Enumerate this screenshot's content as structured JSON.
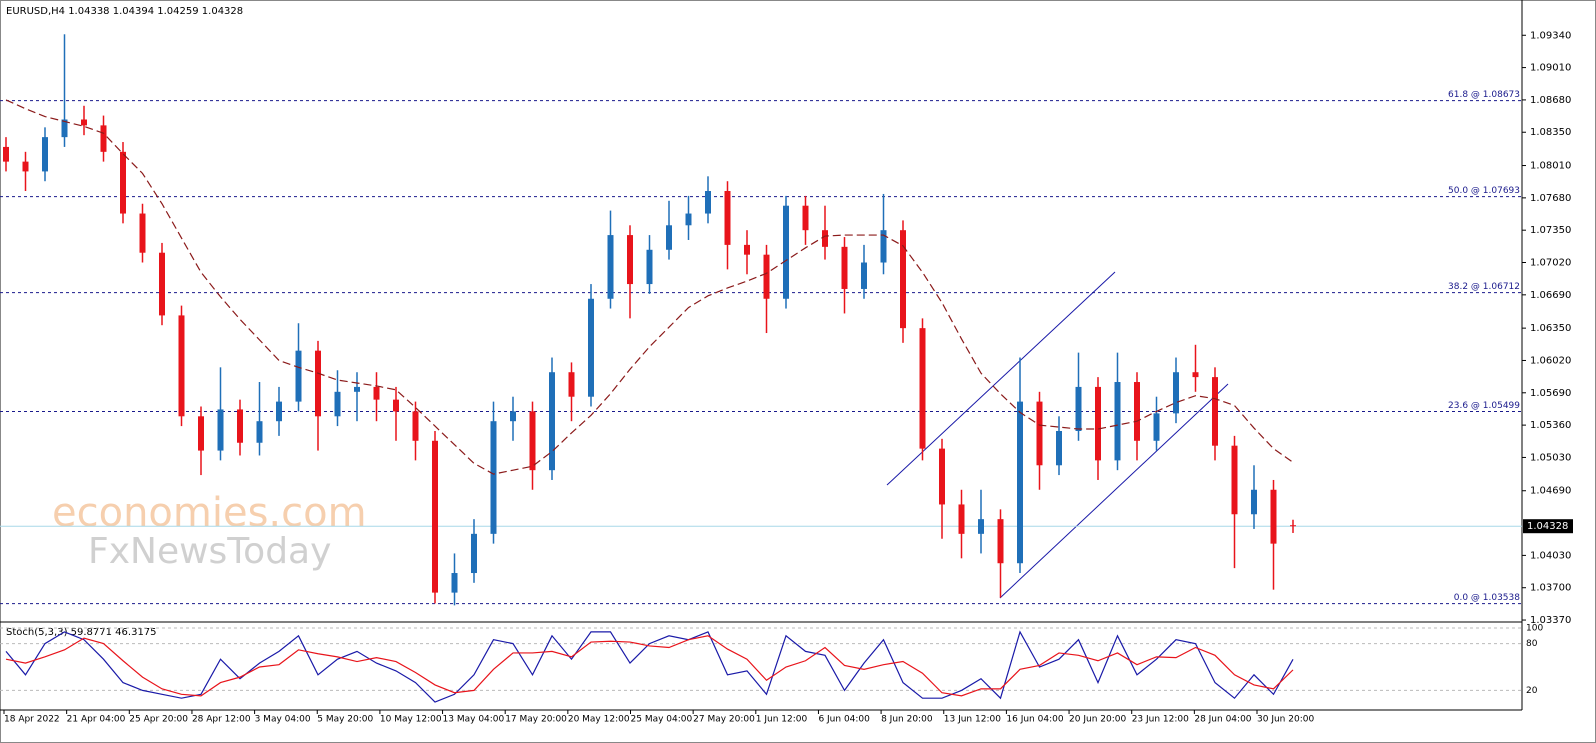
{
  "chart_data": {
    "type": "candlestick",
    "title": "EURUSD,H4  1.04338 1.04394 1.04259 1.04328",
    "watermark": [
      "economies.com",
      "FxNewsToday"
    ],
    "up_color": "#1f6fb8",
    "down_color": "#e8141b",
    "open": [
      1.082,
      1.0805,
      1.0795,
      1.083,
      1.0848,
      1.0842,
      1.0815,
      1.0752,
      1.0712,
      1.0648,
      1.0545,
      1.051,
      1.0552,
      1.0518,
      1.054,
      1.056,
      1.0612,
      1.0545,
      1.057,
      1.0575,
      1.0562,
      1.055,
      1.052,
      1.0365,
      1.0385,
      1.0425,
      1.054,
      1.055,
      1.049,
      1.059,
      1.0565,
      1.0665,
      1.073,
      1.068,
      1.0715,
      1.074,
      1.0752,
      1.0775,
      1.072,
      1.071,
      1.0665,
      1.076,
      1.0735,
      1.0718,
      1.0675,
      1.0702,
      1.0735,
      1.0635,
      1.0512,
      1.0455,
      1.0425,
      1.044,
      1.0395,
      1.056,
      1.0495,
      1.053,
      1.0575,
      1.05,
      1.058,
      1.052,
      1.0548,
      1.059,
      1.0585,
      1.0515,
      1.0445,
      1.047,
      1.04338
    ],
    "high": [
      1.083,
      1.0815,
      1.084,
      1.0935,
      1.0862,
      1.0852,
      1.0825,
      1.0762,
      1.0722,
      1.0658,
      1.0555,
      1.0595,
      1.0562,
      1.058,
      1.0575,
      1.064,
      1.0622,
      1.0592,
      1.059,
      1.059,
      1.0575,
      1.056,
      1.053,
      1.0405,
      1.044,
      1.056,
      1.0565,
      1.056,
      1.0605,
      1.06,
      1.068,
      1.0755,
      1.074,
      1.073,
      1.0765,
      1.077,
      1.079,
      1.0785,
      1.0735,
      1.072,
      1.077,
      1.077,
      1.076,
      1.0728,
      1.072,
      1.0772,
      1.0745,
      1.0645,
      1.0522,
      1.047,
      1.047,
      1.045,
      1.0605,
      1.057,
      1.0545,
      1.061,
      1.0585,
      1.061,
      1.059,
      1.0565,
      1.0605,
      1.0618,
      1.0595,
      1.0525,
      1.0495,
      1.048,
      1.04394
    ],
    "low": [
      1.0795,
      1.0775,
      1.0785,
      1.082,
      1.0832,
      1.0805,
      1.0742,
      1.0702,
      1.0638,
      1.0535,
      1.0485,
      1.05,
      1.0505,
      1.0505,
      1.0525,
      1.055,
      1.051,
      1.0535,
      1.054,
      1.054,
      1.052,
      1.05,
      1.0354,
      1.0352,
      1.0375,
      1.0415,
      1.052,
      1.047,
      1.048,
      1.054,
      1.0555,
      1.0655,
      1.0645,
      1.067,
      1.0705,
      1.0725,
      1.0742,
      1.0695,
      1.069,
      1.063,
      1.0655,
      1.072,
      1.0705,
      1.065,
      1.0665,
      1.069,
      1.062,
      1.05,
      1.042,
      1.04,
      1.0405,
      1.036,
      1.0385,
      1.047,
      1.0485,
      1.052,
      1.048,
      1.049,
      1.05,
      1.051,
      1.0538,
      1.057,
      1.05,
      1.039,
      1.043,
      1.0368,
      1.04259
    ],
    "close": [
      1.0805,
      1.0795,
      1.083,
      1.0848,
      1.0842,
      1.0815,
      1.0752,
      1.0712,
      1.0648,
      1.0545,
      1.051,
      1.0552,
      1.0518,
      1.054,
      1.056,
      1.0612,
      1.0545,
      1.057,
      1.0575,
      1.0562,
      1.055,
      1.052,
      1.0365,
      1.0385,
      1.0425,
      1.054,
      1.055,
      1.049,
      1.059,
      1.0565,
      1.0665,
      1.073,
      1.068,
      1.0715,
      1.074,
      1.0752,
      1.0775,
      1.072,
      1.071,
      1.0665,
      1.076,
      1.0735,
      1.0718,
      1.0675,
      1.0702,
      1.0735,
      1.0635,
      1.0512,
      1.0455,
      1.0425,
      1.044,
      1.0395,
      1.056,
      1.0495,
      1.053,
      1.0575,
      1.05,
      1.058,
      1.052,
      1.0548,
      1.059,
      1.0585,
      1.0515,
      1.0445,
      1.047,
      1.0415,
      1.04328
    ],
    "ma": {
      "color": "#8b1a1a",
      "values": [
        1.0868,
        1.0859,
        1.0851,
        1.0846,
        1.0841,
        1.0834,
        1.0813,
        1.0793,
        1.0762,
        1.0727,
        1.0692,
        1.0667,
        1.0644,
        1.0623,
        1.0602,
        1.0595,
        1.0589,
        1.0582,
        1.0579,
        1.0576,
        1.0572,
        1.0554,
        1.0535,
        1.0516,
        1.0497,
        1.0486,
        1.049,
        1.0494,
        1.0509,
        1.0528,
        1.0546,
        1.0568,
        1.0593,
        1.0616,
        1.0636,
        1.0656,
        1.0668,
        1.0676,
        1.0683,
        1.0691,
        1.0704,
        1.0717,
        1.0729,
        1.073,
        1.073,
        1.073,
        1.0719,
        1.0692,
        1.0661,
        1.0624,
        1.0589,
        1.0568,
        1.0549,
        1.0536,
        1.0534,
        1.0532,
        1.0532,
        1.0536,
        1.054,
        1.055,
        1.0559,
        1.0566,
        1.0563,
        1.0556,
        1.0533,
        1.0512,
        1.0498
      ]
    },
    "levels": [
      {
        "value": 1.08673,
        "label": "61.8 @ 1.08673"
      },
      {
        "value": 1.07693,
        "label": "50.0 @ 1.07693"
      },
      {
        "value": 1.06712,
        "label": "38.2 @ 1.06712"
      },
      {
        "value": 1.05499,
        "label": "23.6 @ 1.05499"
      },
      {
        "value": 1.03538,
        "label": "0.0 @ 1.03538"
      }
    ],
    "level_color": "#1a1a8c",
    "current": {
      "value": 1.04328,
      "label": "1.04328"
    },
    "ylim": [
      1.0335,
      1.097
    ],
    "yticks": [
      {
        "value": 1.0934,
        "label": "1.09340"
      },
      {
        "value": 1.0901,
        "label": "1.09010"
      },
      {
        "value": 1.0868,
        "label": "1.08680"
      },
      {
        "value": 1.0835,
        "label": "1.08350"
      },
      {
        "value": 1.0801,
        "label": "1.08010"
      },
      {
        "value": 1.0768,
        "label": "1.07680"
      },
      {
        "value": 1.0735,
        "label": "1.07350"
      },
      {
        "value": 1.0702,
        "label": "1.07020"
      },
      {
        "value": 1.0669,
        "label": "1.06690"
      },
      {
        "value": 1.0635,
        "label": "1.06350"
      },
      {
        "value": 1.0602,
        "label": "1.06020"
      },
      {
        "value": 1.0569,
        "label": "1.05690"
      },
      {
        "value": 1.0536,
        "label": "1.05360"
      },
      {
        "value": 1.0503,
        "label": "1.05030"
      },
      {
        "value": 1.0469,
        "label": "1.04690"
      },
      {
        "value": 1.0403,
        "label": "1.04030"
      },
      {
        "value": 1.037,
        "label": "1.03700"
      },
      {
        "value": 1.0337,
        "label": "1.03370"
      }
    ],
    "xlabels": [
      "18 Apr 2022",
      "21 Apr 04:00",
      "25 Apr 20:00",
      "28 Apr 12:00",
      "3 May 04:00",
      "5 May 20:00",
      "10 May 12:00",
      "13 May 04:00",
      "17 May 20:00",
      "20 May 12:00",
      "25 May 04:00",
      "27 May 20:00",
      "1 Jun 12:00",
      "6 Jun 04:00",
      "8 Jun 20:00",
      "13 Jun 12:00",
      "16 Jun 04:00",
      "20 Jun 20:00",
      "23 Jun 12:00",
      "28 Jun 04:00",
      "30 Jun 20:00"
    ],
    "stochastic": {
      "title": "Stoch(5,3,3) 59.8771 46.3175",
      "ylim": [
        0,
        100
      ],
      "yticks": [
        100,
        80,
        20
      ],
      "k_color": "#1a1aa8",
      "d_color": "#e8141b",
      "k": [
        70,
        40,
        80,
        95,
        85,
        60,
        30,
        20,
        15,
        10,
        15,
        60,
        35,
        55,
        70,
        90,
        40,
        60,
        70,
        55,
        45,
        30,
        5,
        15,
        40,
        85,
        80,
        40,
        90,
        60,
        95,
        95,
        55,
        80,
        90,
        85,
        95,
        40,
        45,
        15,
        90,
        70,
        65,
        20,
        55,
        85,
        30,
        10,
        10,
        20,
        35,
        10,
        95,
        50,
        60,
        85,
        30,
        90,
        40,
        60,
        85,
        80,
        30,
        10,
        40,
        15,
        59.8771
      ],
      "d": [
        60,
        55,
        63,
        72,
        87,
        80,
        58,
        37,
        22,
        15,
        13,
        30,
        37,
        50,
        53,
        72,
        67,
        63,
        57,
        62,
        57,
        43,
        27,
        17,
        20,
        47,
        68,
        68,
        70,
        63,
        82,
        83,
        82,
        77,
        75,
        85,
        90,
        73,
        60,
        33,
        50,
        58,
        75,
        52,
        47,
        53,
        57,
        42,
        17,
        13,
        22,
        22,
        47,
        52,
        68,
        65,
        58,
        68,
        53,
        63,
        62,
        75,
        65,
        40,
        27,
        22,
        46.3175
      ]
    }
  }
}
